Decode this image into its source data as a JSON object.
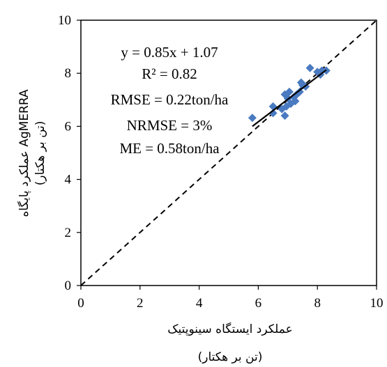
{
  "chart_data": {
    "type": "scatter",
    "xlabel": "عملکرد ایستگاه سینوپتیک",
    "xlabel_unit": "(تن بر هکتار)",
    "ylabel": "عملکرد پایگاه AgMERRA",
    "ylabel_unit": "(تن بر هکتار)",
    "xlim": [
      0,
      10
    ],
    "ylim": [
      0,
      10
    ],
    "xticks": [
      0,
      2,
      4,
      6,
      8,
      10
    ],
    "yticks": [
      0,
      2,
      4,
      6,
      8,
      10
    ],
    "grid": false,
    "series": [
      {
        "points": [
          [
            5.8,
            6.32
          ],
          [
            6.5,
            6.5
          ],
          [
            6.5,
            6.75
          ],
          [
            6.8,
            6.65
          ],
          [
            6.9,
            6.4
          ],
          [
            6.95,
            6.75
          ],
          [
            7.0,
            7.05
          ],
          [
            6.9,
            7.2
          ],
          [
            7.05,
            7.3
          ],
          [
            7.1,
            6.85
          ],
          [
            7.2,
            7.1
          ],
          [
            7.25,
            6.95
          ],
          [
            7.3,
            7.2
          ],
          [
            7.4,
            7.3
          ],
          [
            7.5,
            7.55
          ],
          [
            7.45,
            7.65
          ],
          [
            7.6,
            7.5
          ],
          [
            7.75,
            8.2
          ],
          [
            8.0,
            8.05
          ],
          [
            8.1,
            7.95
          ],
          [
            8.15,
            8.1
          ],
          [
            8.3,
            8.1
          ]
        ],
        "color": "#4a7ac0",
        "marker": "diamond"
      }
    ],
    "trendline": {
      "slope": 0.85,
      "intercept": 1.07,
      "x_range": [
        5.8,
        8.3
      ],
      "color": "#000000"
    },
    "reference_line": {
      "type": "1:1",
      "style": "dashed",
      "color": "#000000"
    },
    "annotations": [
      "y = 0.85x + 1.07",
      "R² = 0.82",
      "RMSE = 0.22ton/ha",
      "NRMSE = 3%",
      "ME = 0.58ton/ha"
    ]
  }
}
